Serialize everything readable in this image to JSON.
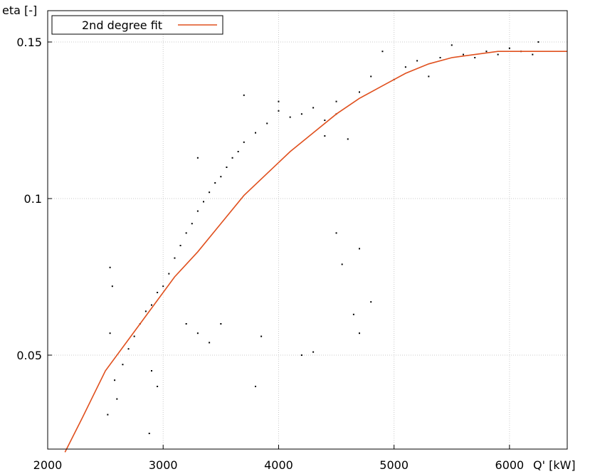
{
  "chart_data": {
    "type": "scatter",
    "xlabel": "Q' [kW]",
    "ylabel": "eta [-]",
    "xlim": [
      2000,
      6500
    ],
    "ylim": [
      0.02,
      0.16
    ],
    "x_ticks": [
      2000,
      3000,
      4000,
      5000,
      6000
    ],
    "x_tick_labels": [
      "2000",
      "3000",
      "4000",
      "5000",
      "6000"
    ],
    "y_ticks": [
      0.05,
      0.1,
      0.15
    ],
    "y_tick_labels": [
      "0.05",
      "0.1",
      "0.15"
    ],
    "grid": true,
    "legend_position": "top-left",
    "colors": {
      "points": "#000000",
      "fit": "#e0501e",
      "grid": "#c8c8c8"
    },
    "series": [
      {
        "name": "",
        "type": "scatter",
        "points": [
          [
            2520,
            0.031
          ],
          [
            2540,
            0.057
          ],
          [
            2540,
            0.078
          ],
          [
            2560,
            0.072
          ],
          [
            2580,
            0.042
          ],
          [
            2600,
            0.036
          ],
          [
            2650,
            0.047
          ],
          [
            2700,
            0.052
          ],
          [
            2750,
            0.056
          ],
          [
            2800,
            0.06
          ],
          [
            2850,
            0.064
          ],
          [
            2880,
            0.025
          ],
          [
            2900,
            0.066
          ],
          [
            2950,
            0.07
          ],
          [
            3000,
            0.072
          ],
          [
            3050,
            0.076
          ],
          [
            3100,
            0.081
          ],
          [
            3150,
            0.085
          ],
          [
            3200,
            0.089
          ],
          [
            3250,
            0.092
          ],
          [
            3300,
            0.096
          ],
          [
            3350,
            0.099
          ],
          [
            3400,
            0.102
          ],
          [
            3450,
            0.105
          ],
          [
            3500,
            0.107
          ],
          [
            3550,
            0.11
          ],
          [
            3600,
            0.113
          ],
          [
            3650,
            0.115
          ],
          [
            3700,
            0.118
          ],
          [
            3800,
            0.121
          ],
          [
            3900,
            0.124
          ],
          [
            4000,
            0.128
          ],
          [
            4000,
            0.131
          ],
          [
            4100,
            0.126
          ],
          [
            4200,
            0.127
          ],
          [
            4300,
            0.129
          ],
          [
            4400,
            0.125
          ],
          [
            4400,
            0.12
          ],
          [
            4500,
            0.127
          ],
          [
            4500,
            0.131
          ],
          [
            4600,
            0.119
          ],
          [
            4700,
            0.134
          ],
          [
            4800,
            0.139
          ],
          [
            4900,
            0.147
          ],
          [
            5000,
            0.138
          ],
          [
            5100,
            0.142
          ],
          [
            5200,
            0.144
          ],
          [
            5300,
            0.139
          ],
          [
            5400,
            0.145
          ],
          [
            5500,
            0.149
          ],
          [
            5600,
            0.146
          ],
          [
            5700,
            0.145
          ],
          [
            5800,
            0.147
          ],
          [
            5900,
            0.146
          ],
          [
            6000,
            0.148
          ],
          [
            6100,
            0.147
          ],
          [
            6200,
            0.146
          ],
          [
            6250,
            0.15
          ],
          [
            3300,
            0.113
          ],
          [
            3800,
            0.04
          ],
          [
            3850,
            0.056
          ],
          [
            4200,
            0.05
          ],
          [
            4300,
            0.051
          ],
          [
            4500,
            0.089
          ],
          [
            4550,
            0.079
          ],
          [
            4700,
            0.084
          ],
          [
            4700,
            0.057
          ],
          [
            4800,
            0.067
          ],
          [
            4650,
            0.063
          ],
          [
            3700,
            0.133
          ],
          [
            3200,
            0.06
          ],
          [
            3300,
            0.057
          ],
          [
            3400,
            0.054
          ],
          [
            3500,
            0.06
          ],
          [
            2900,
            0.045
          ],
          [
            2950,
            0.04
          ]
        ]
      },
      {
        "name": "2nd degree fit",
        "type": "line",
        "points": [
          [
            2150,
            0.019
          ],
          [
            2300,
            0.03
          ],
          [
            2500,
            0.045
          ],
          [
            2700,
            0.055
          ],
          [
            2900,
            0.065
          ],
          [
            3100,
            0.075
          ],
          [
            3300,
            0.083
          ],
          [
            3500,
            0.092
          ],
          [
            3700,
            0.101
          ],
          [
            3900,
            0.108
          ],
          [
            4100,
            0.115
          ],
          [
            4300,
            0.121
          ],
          [
            4500,
            0.127
          ],
          [
            4700,
            0.132
          ],
          [
            4900,
            0.136
          ],
          [
            5100,
            0.14
          ],
          [
            5300,
            0.143
          ],
          [
            5500,
            0.145
          ],
          [
            5700,
            0.146
          ],
          [
            5900,
            0.147
          ],
          [
            6100,
            0.147
          ],
          [
            6300,
            0.147
          ],
          [
            6500,
            0.147
          ]
        ]
      }
    ]
  }
}
